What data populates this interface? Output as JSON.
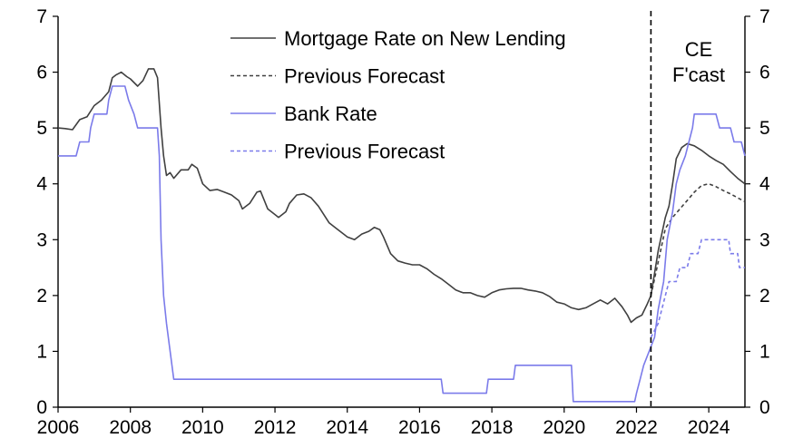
{
  "chart_data": {
    "type": "line",
    "title": "",
    "xlabel": "",
    "ylabel": "",
    "xlim": [
      2006,
      2025
    ],
    "ylim": [
      0,
      7
    ],
    "y2lim": [
      0,
      7
    ],
    "x_ticks": [
      2006,
      2008,
      2010,
      2012,
      2014,
      2016,
      2018,
      2020,
      2022,
      2024
    ],
    "y_ticks": [
      0,
      1,
      2,
      3,
      4,
      5,
      6,
      7
    ],
    "legend_position": "top-center",
    "annotation": {
      "text_lines": [
        "CE",
        "F'cast"
      ],
      "forecast_start_x": 2022.4
    },
    "series": [
      {
        "name": "Mortgage Rate on New Lending",
        "color": "#404040",
        "style": "solid",
        "points": [
          [
            2006.0,
            5.0
          ],
          [
            2006.2,
            4.99
          ],
          [
            2006.4,
            4.97
          ],
          [
            2006.6,
            5.15
          ],
          [
            2006.8,
            5.2
          ],
          [
            2007.0,
            5.4
          ],
          [
            2007.2,
            5.5
          ],
          [
            2007.4,
            5.65
          ],
          [
            2007.5,
            5.9
          ],
          [
            2007.6,
            5.95
          ],
          [
            2007.75,
            6.0
          ],
          [
            2007.9,
            5.92
          ],
          [
            2008.0,
            5.88
          ],
          [
            2008.2,
            5.75
          ],
          [
            2008.35,
            5.85
          ],
          [
            2008.5,
            6.06
          ],
          [
            2008.65,
            6.06
          ],
          [
            2008.75,
            5.9
          ],
          [
            2008.85,
            5.0
          ],
          [
            2008.92,
            4.5
          ],
          [
            2009.0,
            4.15
          ],
          [
            2009.1,
            4.2
          ],
          [
            2009.2,
            4.1
          ],
          [
            2009.4,
            4.25
          ],
          [
            2009.6,
            4.25
          ],
          [
            2009.7,
            4.35
          ],
          [
            2009.85,
            4.28
          ],
          [
            2010.0,
            4.0
          ],
          [
            2010.2,
            3.88
          ],
          [
            2010.4,
            3.9
          ],
          [
            2010.6,
            3.85
          ],
          [
            2010.8,
            3.8
          ],
          [
            2011.0,
            3.7
          ],
          [
            2011.1,
            3.55
          ],
          [
            2011.3,
            3.65
          ],
          [
            2011.5,
            3.85
          ],
          [
            2011.6,
            3.87
          ],
          [
            2011.8,
            3.55
          ],
          [
            2012.0,
            3.45
          ],
          [
            2012.1,
            3.4
          ],
          [
            2012.3,
            3.5
          ],
          [
            2012.4,
            3.65
          ],
          [
            2012.6,
            3.8
          ],
          [
            2012.8,
            3.82
          ],
          [
            2013.0,
            3.75
          ],
          [
            2013.2,
            3.6
          ],
          [
            2013.5,
            3.3
          ],
          [
            2013.7,
            3.2
          ],
          [
            2014.0,
            3.05
          ],
          [
            2014.2,
            3.0
          ],
          [
            2014.4,
            3.1
          ],
          [
            2014.6,
            3.15
          ],
          [
            2014.75,
            3.22
          ],
          [
            2014.9,
            3.18
          ],
          [
            2015.0,
            3.05
          ],
          [
            2015.2,
            2.75
          ],
          [
            2015.4,
            2.62
          ],
          [
            2015.6,
            2.58
          ],
          [
            2015.8,
            2.55
          ],
          [
            2016.0,
            2.55
          ],
          [
            2016.2,
            2.48
          ],
          [
            2016.4,
            2.38
          ],
          [
            2016.6,
            2.3
          ],
          [
            2016.8,
            2.2
          ],
          [
            2017.0,
            2.1
          ],
          [
            2017.2,
            2.05
          ],
          [
            2017.4,
            2.05
          ],
          [
            2017.6,
            2.0
          ],
          [
            2017.8,
            1.97
          ],
          [
            2018.0,
            2.05
          ],
          [
            2018.2,
            2.1
          ],
          [
            2018.4,
            2.12
          ],
          [
            2018.6,
            2.13
          ],
          [
            2018.8,
            2.13
          ],
          [
            2019.0,
            2.1
          ],
          [
            2019.2,
            2.08
          ],
          [
            2019.4,
            2.05
          ],
          [
            2019.6,
            1.98
          ],
          [
            2019.8,
            1.88
          ],
          [
            2020.0,
            1.85
          ],
          [
            2020.2,
            1.78
          ],
          [
            2020.4,
            1.75
          ],
          [
            2020.6,
            1.78
          ],
          [
            2020.8,
            1.85
          ],
          [
            2021.0,
            1.92
          ],
          [
            2021.2,
            1.85
          ],
          [
            2021.4,
            1.95
          ],
          [
            2021.6,
            1.8
          ],
          [
            2021.75,
            1.65
          ],
          [
            2021.85,
            1.52
          ],
          [
            2022.0,
            1.6
          ],
          [
            2022.15,
            1.65
          ],
          [
            2022.3,
            1.85
          ],
          [
            2022.4,
            2.0
          ],
          [
            2022.6,
            2.8
          ],
          [
            2022.8,
            3.4
          ],
          [
            2022.9,
            3.6
          ],
          [
            2023.0,
            4.0
          ],
          [
            2023.1,
            4.45
          ],
          [
            2023.25,
            4.65
          ],
          [
            2023.4,
            4.72
          ],
          [
            2023.6,
            4.68
          ],
          [
            2023.8,
            4.6
          ],
          [
            2024.0,
            4.5
          ],
          [
            2024.2,
            4.42
          ],
          [
            2024.4,
            4.35
          ],
          [
            2024.6,
            4.22
          ],
          [
            2024.8,
            4.1
          ],
          [
            2025.0,
            4.0
          ]
        ]
      },
      {
        "name": "Previous Forecast",
        "color": "#404040",
        "style": "dashed",
        "points": [
          [
            2022.4,
            2.0
          ],
          [
            2022.6,
            2.6
          ],
          [
            2022.8,
            3.2
          ],
          [
            2023.0,
            3.4
          ],
          [
            2023.2,
            3.55
          ],
          [
            2023.4,
            3.7
          ],
          [
            2023.6,
            3.85
          ],
          [
            2023.8,
            3.97
          ],
          [
            2024.0,
            4.0
          ],
          [
            2024.2,
            3.95
          ],
          [
            2024.4,
            3.88
          ],
          [
            2024.6,
            3.82
          ],
          [
            2024.8,
            3.75
          ],
          [
            2025.0,
            3.68
          ]
        ]
      },
      {
        "name": "Bank Rate",
        "color": "#7b7bea",
        "style": "solid",
        "points": [
          [
            2006.0,
            4.5
          ],
          [
            2006.5,
            4.5
          ],
          [
            2006.6,
            4.75
          ],
          [
            2006.85,
            4.75
          ],
          [
            2006.9,
            5.0
          ],
          [
            2007.0,
            5.25
          ],
          [
            2007.35,
            5.25
          ],
          [
            2007.4,
            5.5
          ],
          [
            2007.5,
            5.75
          ],
          [
            2007.85,
            5.75
          ],
          [
            2007.95,
            5.5
          ],
          [
            2008.1,
            5.25
          ],
          [
            2008.2,
            5.0
          ],
          [
            2008.75,
            5.0
          ],
          [
            2008.8,
            4.5
          ],
          [
            2008.85,
            3.0
          ],
          [
            2008.92,
            2.0
          ],
          [
            2009.0,
            1.5
          ],
          [
            2009.1,
            1.0
          ],
          [
            2009.2,
            0.5
          ],
          [
            2016.6,
            0.5
          ],
          [
            2016.65,
            0.25
          ],
          [
            2017.85,
            0.25
          ],
          [
            2017.9,
            0.5
          ],
          [
            2018.6,
            0.5
          ],
          [
            2018.65,
            0.75
          ],
          [
            2020.2,
            0.75
          ],
          [
            2020.25,
            0.1
          ],
          [
            2021.95,
            0.1
          ],
          [
            2022.0,
            0.25
          ],
          [
            2022.1,
            0.5
          ],
          [
            2022.2,
            0.75
          ],
          [
            2022.35,
            1.0
          ],
          [
            2022.5,
            1.25
          ],
          [
            2022.6,
            1.75
          ],
          [
            2022.75,
            2.25
          ],
          [
            2022.85,
            3.0
          ],
          [
            2023.0,
            3.5
          ],
          [
            2023.1,
            4.0
          ],
          [
            2023.2,
            4.25
          ],
          [
            2023.35,
            4.5
          ],
          [
            2023.55,
            5.0
          ],
          [
            2023.6,
            5.25
          ],
          [
            2024.2,
            5.25
          ],
          [
            2024.3,
            5.0
          ],
          [
            2024.6,
            5.0
          ],
          [
            2024.7,
            4.75
          ],
          [
            2024.9,
            4.75
          ],
          [
            2025.0,
            4.5
          ]
        ]
      },
      {
        "name": "Previous Forecast",
        "color": "#7b7bea",
        "style": "dashed",
        "points": [
          [
            2022.4,
            1.25
          ],
          [
            2022.6,
            1.5
          ],
          [
            2022.8,
            2.0
          ],
          [
            2022.9,
            2.25
          ],
          [
            2023.1,
            2.25
          ],
          [
            2023.2,
            2.5
          ],
          [
            2023.4,
            2.5
          ],
          [
            2023.5,
            2.75
          ],
          [
            2023.7,
            2.75
          ],
          [
            2023.8,
            3.0
          ],
          [
            2024.55,
            3.0
          ],
          [
            2024.6,
            2.75
          ],
          [
            2024.8,
            2.75
          ],
          [
            2024.85,
            2.5
          ],
          [
            2025.0,
            2.5
          ]
        ]
      }
    ]
  }
}
